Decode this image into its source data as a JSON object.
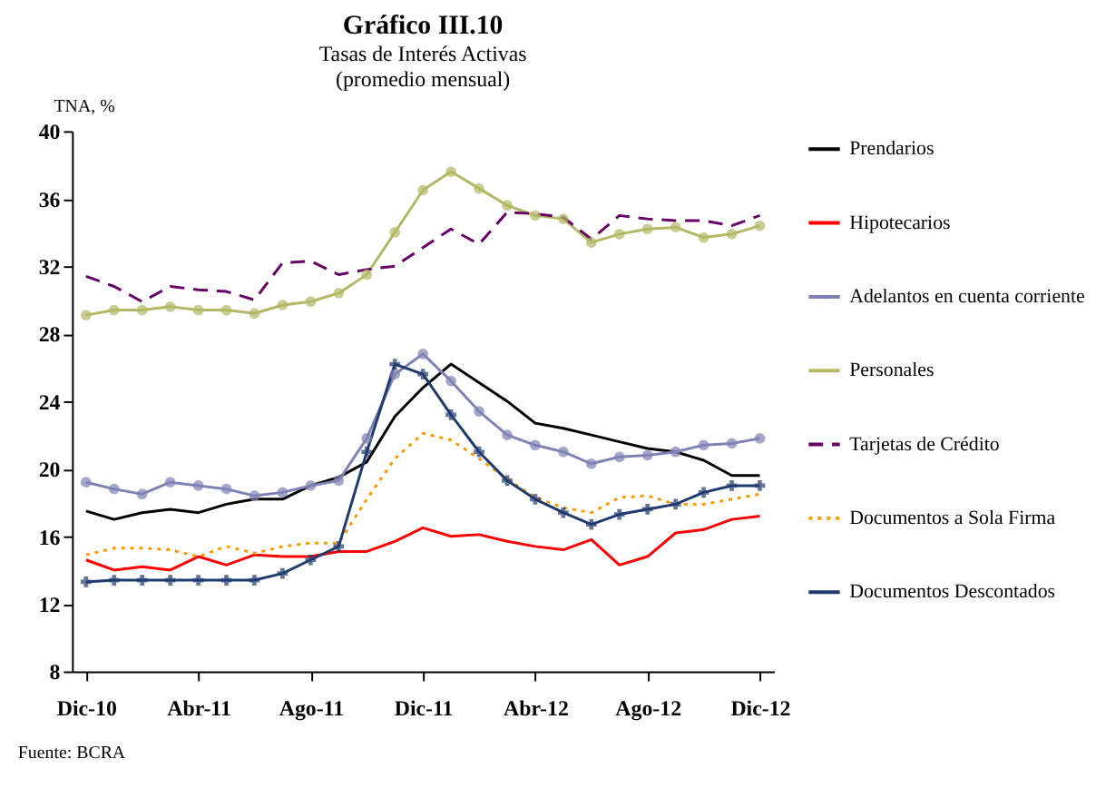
{
  "chart_data": {
    "type": "line",
    "title": "Gráfico III.10",
    "subtitle": "Tasas de Interés Activas\n(promedio mensual)",
    "ylabel": "TNA, %",
    "categories": [
      "Dic-10",
      null,
      null,
      null,
      "Abr-11",
      null,
      null,
      null,
      "Ago-11",
      null,
      null,
      null,
      "Dic-11",
      null,
      null,
      null,
      "Abr-12",
      null,
      null,
      null,
      "Ago-12",
      null,
      null,
      null,
      "Dic-12"
    ],
    "series": [
      {
        "name": "Prendarios",
        "color": "#000000",
        "line_style": "solid",
        "marker": "none",
        "values": [
          17.5,
          17.0,
          17.4,
          17.6,
          17.4,
          17.9,
          18.2,
          18.2,
          19.0,
          19.5,
          20.4,
          23.1,
          24.8,
          26.2,
          25.1,
          24.0,
          22.7,
          22.4,
          22.0,
          21.6,
          21.2,
          21.0,
          20.5,
          19.6,
          19.6
        ]
      },
      {
        "name": "Hipotecarios",
        "color": "#ff0000",
        "line_style": "solid",
        "marker": "none",
        "values": [
          14.6,
          14.0,
          14.2,
          14.0,
          14.8,
          14.3,
          14.9,
          14.8,
          14.8,
          15.1,
          15.1,
          15.7,
          16.5,
          16.0,
          16.1,
          15.7,
          15.4,
          15.2,
          15.8,
          14.3,
          14.8,
          16.2,
          16.4,
          17.0,
          17.2
        ]
      },
      {
        "name": "Adelantos en cuenta corriente",
        "color": "#7f82b4",
        "line_style": "solid",
        "marker": "circle",
        "values": [
          19.2,
          18.8,
          18.5,
          19.2,
          19.0,
          18.8,
          18.4,
          18.6,
          19.0,
          19.3,
          21.8,
          25.6,
          26.8,
          25.2,
          23.4,
          22.0,
          21.4,
          21.0,
          20.3,
          20.7,
          20.8,
          21.0,
          21.4,
          21.5,
          21.8
        ]
      },
      {
        "name": "Personales",
        "color": "#b3b865",
        "line_style": "solid",
        "marker": "circle",
        "values": [
          29.1,
          29.4,
          29.4,
          29.6,
          29.4,
          29.4,
          29.2,
          29.7,
          29.9,
          30.4,
          31.5,
          34.0,
          36.5,
          37.6,
          36.6,
          35.6,
          35.0,
          34.8,
          33.4,
          33.9,
          34.2,
          34.3,
          33.7,
          33.9,
          34.4
        ]
      },
      {
        "name": "Tarjetas de Crédito",
        "color": "#660066",
        "line_style": "dashed",
        "marker": "none",
        "values": [
          31.4,
          30.8,
          29.9,
          30.8,
          30.6,
          30.5,
          30.0,
          32.2,
          32.3,
          31.5,
          31.8,
          32.0,
          33.1,
          34.2,
          33.3,
          35.2,
          35.1,
          34.9,
          33.6,
          35.0,
          34.8,
          34.7,
          34.7,
          34.4,
          35.0
        ]
      },
      {
        "name": "Documentos a Sola Firma",
        "color": "#ff9900",
        "line_style": "dotted",
        "marker": "none",
        "values": [
          14.9,
          15.3,
          15.3,
          15.2,
          14.8,
          15.4,
          15.0,
          15.4,
          15.6,
          15.6,
          18.2,
          20.6,
          22.1,
          21.7,
          20.6,
          19.4,
          18.3,
          17.7,
          17.4,
          18.3,
          18.4,
          17.9,
          17.9,
          18.2,
          18.5
        ]
      },
      {
        "name": "Documentos Descontados",
        "color": "#1f3a6e",
        "line_style": "solid",
        "marker": "cross",
        "values": [
          13.3,
          13.4,
          13.4,
          13.4,
          13.4,
          13.4,
          13.4,
          13.8,
          14.6,
          15.4,
          21.0,
          26.2,
          25.6,
          23.2,
          21.0,
          19.3,
          18.2,
          17.4,
          16.7,
          17.3,
          17.6,
          17.9,
          18.6,
          19.0,
          19.0
        ]
      }
    ],
    "ylim": [
      8,
      40
    ],
    "yticks": [
      8,
      12,
      16,
      20,
      24,
      28,
      32,
      36,
      40
    ],
    "grid": false,
    "legend": "right",
    "annotations": [
      "Fuente: BCRA"
    ]
  }
}
